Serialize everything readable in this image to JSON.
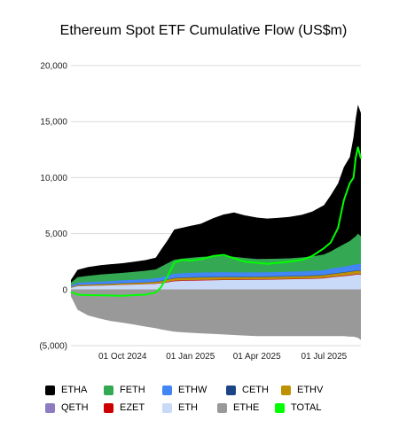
{
  "chart_data": {
    "type": "area",
    "title": "Ethereum Spot ETF Cumulative Flow (US$m)",
    "xlabel": "",
    "ylabel": "",
    "ylim": [
      -5000,
      20000
    ],
    "y_ticks": [
      -5000,
      0,
      5000,
      10000,
      15000,
      20000
    ],
    "y_tick_labels": [
      "(5,000)",
      "0",
      "5,000",
      "10,000",
      "15,000",
      "20,000"
    ],
    "x_range": [
      "2024-07-23",
      "2025-08-20"
    ],
    "x_ticks": [
      "2024-10-01",
      "2025-01-01",
      "2025-04-01",
      "2025-07-01"
    ],
    "x_tick_labels": [
      "01 Oct 2024",
      "01 Jan 2025",
      "01 Apr 2025",
      "01 Jul 2025"
    ],
    "grid": "horizontal",
    "legend_position": "bottom",
    "x": [
      "2024-07-23",
      "2024-08-01",
      "2024-08-15",
      "2024-09-01",
      "2024-09-15",
      "2024-10-01",
      "2024-10-15",
      "2024-11-01",
      "2024-11-15",
      "2024-11-22",
      "2024-12-01",
      "2024-12-10",
      "2024-12-20",
      "2025-01-01",
      "2025-01-15",
      "2025-02-01",
      "2025-02-15",
      "2025-03-01",
      "2025-03-15",
      "2025-04-01",
      "2025-04-15",
      "2025-05-01",
      "2025-05-15",
      "2025-06-01",
      "2025-06-15",
      "2025-07-01",
      "2025-07-10",
      "2025-07-20",
      "2025-07-28",
      "2025-08-05",
      "2025-08-10",
      "2025-08-13",
      "2025-08-16",
      "2025-08-20"
    ],
    "series": [
      {
        "name": "ETHA",
        "color": "#000000",
        "values": [
          250,
          650,
          780,
          830,
          850,
          860,
          900,
          950,
          1050,
          1500,
          2050,
          2700,
          2750,
          2850,
          2950,
          3400,
          3700,
          3950,
          3800,
          3700,
          3600,
          3650,
          3700,
          3800,
          4000,
          4400,
          5000,
          5700,
          6900,
          7500,
          9000,
          10500,
          11500,
          11000
        ]
      },
      {
        "name": "FETH",
        "color": "#34a853",
        "values": [
          250,
          500,
          560,
          620,
          650,
          670,
          700,
          750,
          800,
          950,
          1100,
          1250,
          1300,
          1350,
          1400,
          1450,
          1450,
          1400,
          1300,
          1200,
          1200,
          1200,
          1200,
          1250,
          1300,
          1400,
          1550,
          1800,
          2000,
          2200,
          2400,
          2500,
          2700,
          2500
        ]
      },
      {
        "name": "ETHW",
        "color": "#4285f4",
        "values": [
          150,
          200,
          220,
          240,
          250,
          260,
          270,
          280,
          300,
          320,
          340,
          370,
          380,
          390,
          400,
          400,
          400,
          390,
          380,
          370,
          370,
          370,
          380,
          390,
          400,
          420,
          450,
          480,
          500,
          520,
          540,
          560,
          570,
          560
        ]
      },
      {
        "name": "CETH",
        "color": "#1c4587",
        "values": [
          5,
          10,
          10,
          15,
          15,
          20,
          20,
          25,
          25,
          30,
          30,
          35,
          35,
          40,
          40,
          40,
          40,
          40,
          40,
          40,
          40,
          40,
          40,
          40,
          40,
          40,
          40,
          40,
          40,
          40,
          40,
          40,
          40,
          40
        ]
      },
      {
        "name": "ETHV",
        "color": "#bf9000",
        "values": [
          50,
          80,
          90,
          100,
          100,
          110,
          110,
          120,
          130,
          150,
          180,
          200,
          210,
          210,
          210,
          210,
          210,
          200,
          200,
          200,
          200,
          200,
          200,
          200,
          210,
          220,
          230,
          240,
          250,
          260,
          270,
          270,
          270,
          270
        ]
      },
      {
        "name": "QETH",
        "color": "#8e7cc3",
        "values": [
          5,
          10,
          10,
          10,
          10,
          10,
          10,
          10,
          10,
          15,
          15,
          15,
          15,
          15,
          15,
          15,
          15,
          15,
          15,
          15,
          15,
          15,
          15,
          15,
          15,
          15,
          15,
          15,
          15,
          15,
          15,
          15,
          15,
          15
        ]
      },
      {
        "name": "EZET",
        "color": "#cc0000",
        "values": [
          5,
          10,
          10,
          10,
          10,
          10,
          15,
          15,
          20,
          30,
          40,
          40,
          40,
          40,
          40,
          40,
          40,
          40,
          40,
          40,
          40,
          40,
          40,
          40,
          40,
          40,
          45,
          45,
          50,
          50,
          50,
          50,
          50,
          50
        ]
      },
      {
        "name": "ETH",
        "color": "#c9daf8",
        "values": [
          150,
          300,
          330,
          350,
          380,
          420,
          450,
          480,
          520,
          560,
          650,
          750,
          780,
          800,
          820,
          830,
          850,
          850,
          860,
          870,
          880,
          900,
          920,
          940,
          960,
          1000,
          1080,
          1150,
          1200,
          1250,
          1300,
          1330,
          1350,
          1330
        ]
      },
      {
        "name": "ETHE",
        "color": "#999999",
        "values": [
          -600,
          -1800,
          -2300,
          -2600,
          -2800,
          -2950,
          -3100,
          -3300,
          -3450,
          -3550,
          -3650,
          -3750,
          -3800,
          -3850,
          -3900,
          -3950,
          -4000,
          -4050,
          -4100,
          -4150,
          -4150,
          -4150,
          -4150,
          -4150,
          -4150,
          -4150,
          -4150,
          -4150,
          -4150,
          -4200,
          -4200,
          -4250,
          -4300,
          -4500
        ]
      },
      {
        "name": "TOTAL",
        "color": "#00ff00",
        "values": [
          -200,
          -450,
          -500,
          -500,
          -530,
          -550,
          -500,
          -450,
          -250,
          200,
          1200,
          2400,
          2650,
          2600,
          2700,
          3000,
          3100,
          2800,
          2500,
          2400,
          2300,
          2400,
          2500,
          2650,
          3000,
          3700,
          4200,
          5500,
          8000,
          9500,
          10000,
          11800,
          12700,
          11700
        ]
      }
    ]
  }
}
